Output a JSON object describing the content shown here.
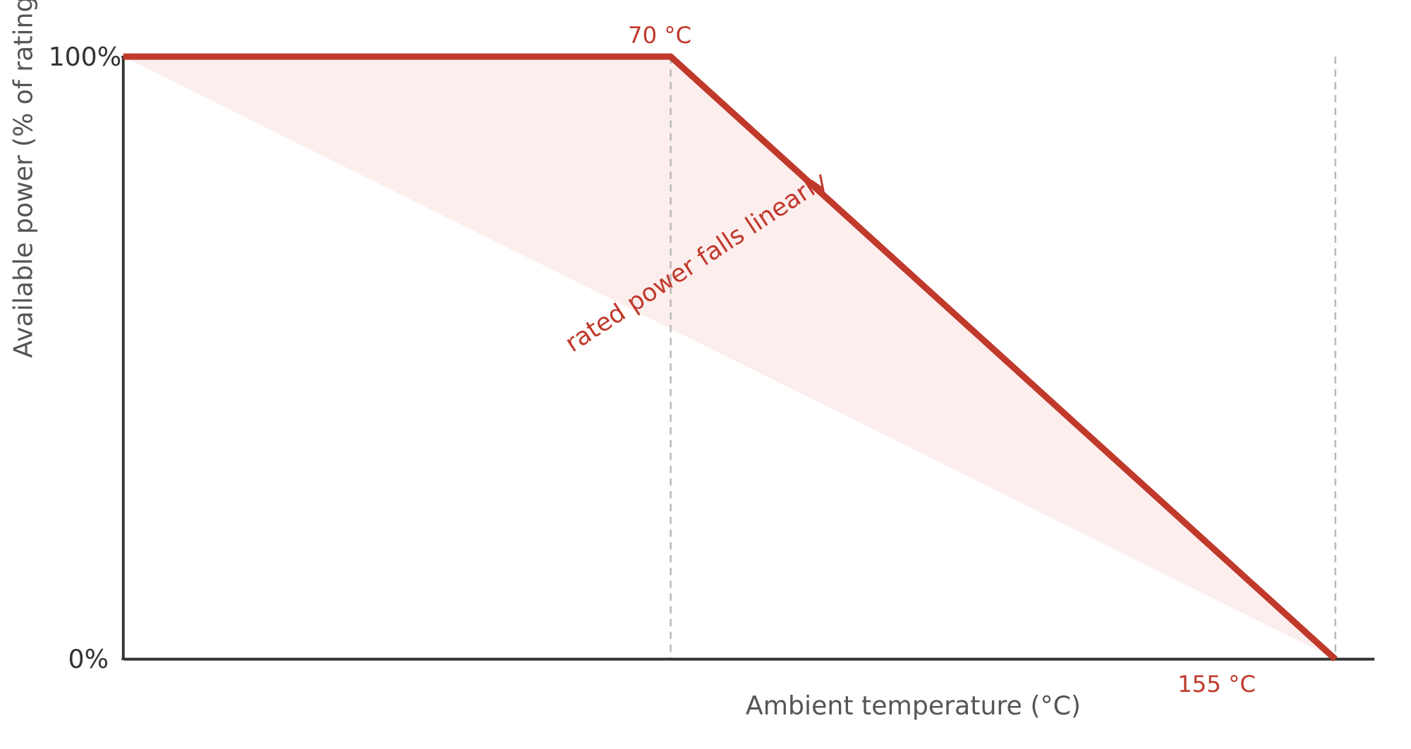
{
  "chart_data": {
    "type": "line",
    "x_label": "Ambient temperature (°C)",
    "y_label": "Available power (% of rating)",
    "x": [
      0,
      70,
      155
    ],
    "series": [
      {
        "color": "#c0392b",
        "values": [
          100,
          100,
          0
        ]
      }
    ],
    "xlim": [
      0,
      160
    ],
    "ylim": [
      0,
      100
    ],
    "yticks": [
      {
        "value": 0,
        "label": "0%"
      },
      {
        "value": 100,
        "label": "100%"
      }
    ],
    "fill_color": "#fdeeee",
    "markers": [
      {
        "x": 70,
        "label": "70 °C"
      },
      {
        "x": 155,
        "label": "155 °C"
      }
    ],
    "annotation": "rated power falls linearly"
  }
}
